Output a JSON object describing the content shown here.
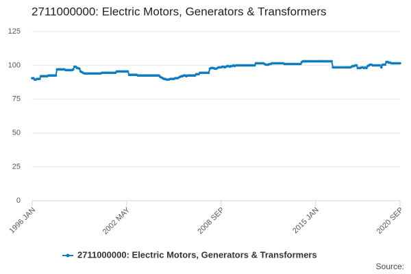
{
  "chart_data": {
    "type": "line",
    "title": "2711000000: Electric Motors, Generators & Transformers",
    "source": "Source:",
    "categories": [
      "1996 JAN",
      null,
      null,
      null,
      null,
      null,
      null,
      null,
      null,
      null,
      null,
      null,
      null,
      null,
      null,
      null,
      null,
      null,
      null,
      null,
      null,
      null,
      null,
      null,
      null,
      null,
      null,
      null,
      null,
      null,
      null,
      null,
      null,
      null,
      null,
      null,
      null,
      null,
      null,
      null,
      null,
      null,
      null,
      null,
      null,
      null,
      null,
      null,
      null,
      null,
      null,
      null,
      null,
      null,
      null,
      null,
      null,
      null,
      null,
      null,
      null,
      null,
      null,
      null,
      null,
      null,
      null,
      null,
      null,
      null,
      null,
      null,
      null,
      null,
      null,
      null,
      "2002 MAY",
      null,
      null,
      null,
      null,
      null,
      null,
      null,
      null,
      null,
      null,
      null,
      null,
      null,
      null,
      null,
      null,
      null,
      null,
      null,
      null,
      null,
      null,
      null,
      null,
      null,
      null,
      null,
      null,
      null,
      null,
      null,
      null,
      null,
      null,
      null,
      null,
      null,
      null,
      null,
      null,
      null,
      null,
      null,
      null,
      null,
      null,
      null,
      null,
      null,
      null,
      null,
      null,
      null,
      null,
      null,
      null,
      null,
      null,
      null,
      null,
      null,
      null,
      null,
      null,
      null,
      null,
      null,
      null,
      null,
      null,
      null,
      null,
      null,
      null,
      null,
      "2008 SEP",
      null,
      null,
      null,
      null,
      null,
      null,
      null,
      null,
      null,
      null,
      null,
      null,
      null,
      null,
      null,
      null,
      null,
      null,
      null,
      null,
      null,
      null,
      null,
      null,
      null,
      null,
      null,
      null,
      null,
      null,
      null,
      null,
      null,
      null,
      null,
      null,
      null,
      null,
      null,
      null,
      null,
      null,
      null,
      null,
      null,
      null,
      null,
      null,
      null,
      null,
      null,
      null,
      null,
      null,
      null,
      null,
      null,
      null,
      null,
      null,
      null,
      null,
      null,
      null,
      null,
      null,
      null,
      null,
      null,
      null,
      null,
      null,
      null,
      null,
      null,
      "2015 JAN",
      null,
      null,
      null,
      null,
      null,
      null,
      null,
      null,
      null,
      null,
      null,
      null,
      null,
      null,
      null,
      null,
      null,
      null,
      null,
      null,
      null,
      null,
      null,
      null,
      null,
      null,
      null,
      null,
      null,
      null,
      null,
      null,
      null,
      null,
      null,
      null,
      null,
      null,
      null,
      null,
      null,
      null,
      null,
      null,
      null,
      null,
      null,
      null,
      null,
      null,
      null,
      null,
      null,
      null,
      null,
      null,
      null,
      null,
      null,
      null,
      null,
      null,
      null,
      null,
      null,
      null,
      null,
      "2020 SEP"
    ],
    "series": [
      {
        "name": "2711000000: Electric Motors, Generators & Transformers",
        "color": "#0f7cbf",
        "values": [
          90.5,
          90.5,
          89.5,
          89.5,
          90,
          90,
          90,
          92,
          92,
          92,
          92,
          92,
          92,
          92.5,
          92.5,
          92.5,
          92.5,
          92.5,
          92.5,
          92.5,
          97,
          97,
          97,
          97,
          97,
          97,
          97,
          96.5,
          96.5,
          96.5,
          96.5,
          96.5,
          96.5,
          97,
          99,
          99,
          98,
          98,
          97.5,
          95.5,
          95,
          94.5,
          94,
          94,
          94,
          94,
          94,
          94,
          94,
          94,
          94,
          94,
          94,
          94,
          94,
          94,
          94.5,
          94.5,
          94.5,
          94.5,
          94.5,
          94.5,
          94.5,
          94.5,
          94.5,
          94.5,
          94.5,
          94.5,
          95.5,
          95.5,
          95.5,
          95.5,
          95.5,
          95.5,
          95.5,
          95.5,
          95.5,
          95.5,
          93,
          93,
          93,
          93,
          93,
          93,
          93,
          92.5,
          92.5,
          92.5,
          92.5,
          92.5,
          92.5,
          92.5,
          92.5,
          92.5,
          92.5,
          92.5,
          92.5,
          92.5,
          92.5,
          92.5,
          92.5,
          92.5,
          92.5,
          91.5,
          91,
          90.5,
          90,
          90,
          89.5,
          89.5,
          89.5,
          90,
          90,
          90,
          90,
          90.5,
          90.5,
          90.5,
          91,
          91.5,
          92,
          92,
          92.5,
          92.5,
          92,
          92.5,
          92.5,
          92.5,
          92.5,
          92.5,
          92.5,
          92.5,
          93.5,
          93.5,
          93.5,
          94.5,
          94.5,
          94.5,
          94.5,
          94.5,
          94.5,
          94.5,
          94.5,
          97.5,
          98,
          98,
          98,
          97.5,
          97.5,
          98,
          98.5,
          98.5,
          98.5,
          99,
          99,
          98.5,
          99,
          99.5,
          99.5,
          99,
          99.5,
          99.5,
          100,
          99.5,
          100,
          100,
          100,
          100,
          100,
          100,
          100,
          100,
          100,
          100,
          100,
          100,
          100,
          100,
          100,
          100,
          101.5,
          101.5,
          101.5,
          101.5,
          101.5,
          101.5,
          101.5,
          101,
          100.5,
          100.5,
          100.5,
          101,
          101,
          101.5,
          101.5,
          101.5,
          101.5,
          101.5,
          101.5,
          101.5,
          101.5,
          101.5,
          101.5,
          101,
          101,
          101,
          101,
          101,
          101,
          101,
          101,
          101,
          101,
          101,
          101,
          101,
          101,
          102.5,
          103,
          103,
          103,
          103,
          103,
          103,
          103,
          103,
          103,
          103,
          103,
          103,
          103,
          103,
          103,
          103,
          103,
          103,
          103,
          103,
          103,
          103,
          103,
          103,
          98.5,
          98.5,
          98.5,
          98.5,
          98.5,
          98.5,
          98.5,
          98.5,
          98.5,
          98.5,
          98.5,
          98.5,
          98.5,
          98.5,
          98.5,
          99,
          99.5,
          99.5,
          100,
          100,
          98,
          98,
          98,
          98.5,
          98.5,
          98,
          98.5,
          98,
          99.5,
          100,
          100.5,
          100.5,
          100,
          100,
          100,
          100,
          100,
          100,
          100,
          98.5,
          100.5,
          100.5,
          100.5,
          102.5,
          102.5,
          102,
          102,
          101.5,
          101.5,
          101.5,
          101.5,
          101.5,
          101.5,
          101.5,
          101.5
        ]
      }
    ],
    "ylim": [
      0,
      125
    ],
    "yticks": [
      0,
      25,
      50,
      75,
      100,
      125
    ],
    "grid": true,
    "legend": "bottom"
  }
}
